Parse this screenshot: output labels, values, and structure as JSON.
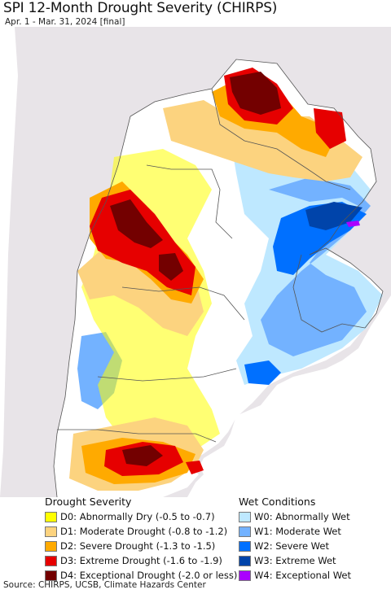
{
  "title": "SPI 12-Month Drought Severity (CHIRPS)",
  "subtitle": "Apr. 1 - Mar. 31, 2024 [final]",
  "legend": {
    "drought_title": "Drought Severity",
    "wet_title": "Wet Conditions",
    "drought": [
      {
        "label": "D0: Abnormally Dry (-0.5 to -0.7)",
        "color": "#ffff00"
      },
      {
        "label": "D1: Moderate Drought (-0.8 to -1.2)",
        "color": "#fcd37f"
      },
      {
        "label": "D2: Severe Drought (-1.3 to -1.5)",
        "color": "#ffaa00"
      },
      {
        "label": "D3: Extreme Drought (-1.6 to -1.9)",
        "color": "#e60000"
      },
      {
        "label": "D4: Exceptional Drought (-2.0 or less)",
        "color": "#730000"
      }
    ],
    "wet": [
      {
        "label": "W0: Abnormally Wet",
        "color": "#bee8ff"
      },
      {
        "label": "W1: Moderate Wet",
        "color": "#73b2ff"
      },
      {
        "label": "W2: Severe Wet",
        "color": "#0070ff"
      },
      {
        "label": "W3: Extreme Wet",
        "color": "#0044aa"
      },
      {
        "label": "W4: Exceptional Wet",
        "color": "#aa00ff"
      }
    ]
  },
  "map_colors": {
    "outside_region": "#e8e4e8",
    "ocean": "#ffffff",
    "borders": "#555555"
  },
  "source": "Source: CHIRPS, UCSB, Climate Hazards Center"
}
